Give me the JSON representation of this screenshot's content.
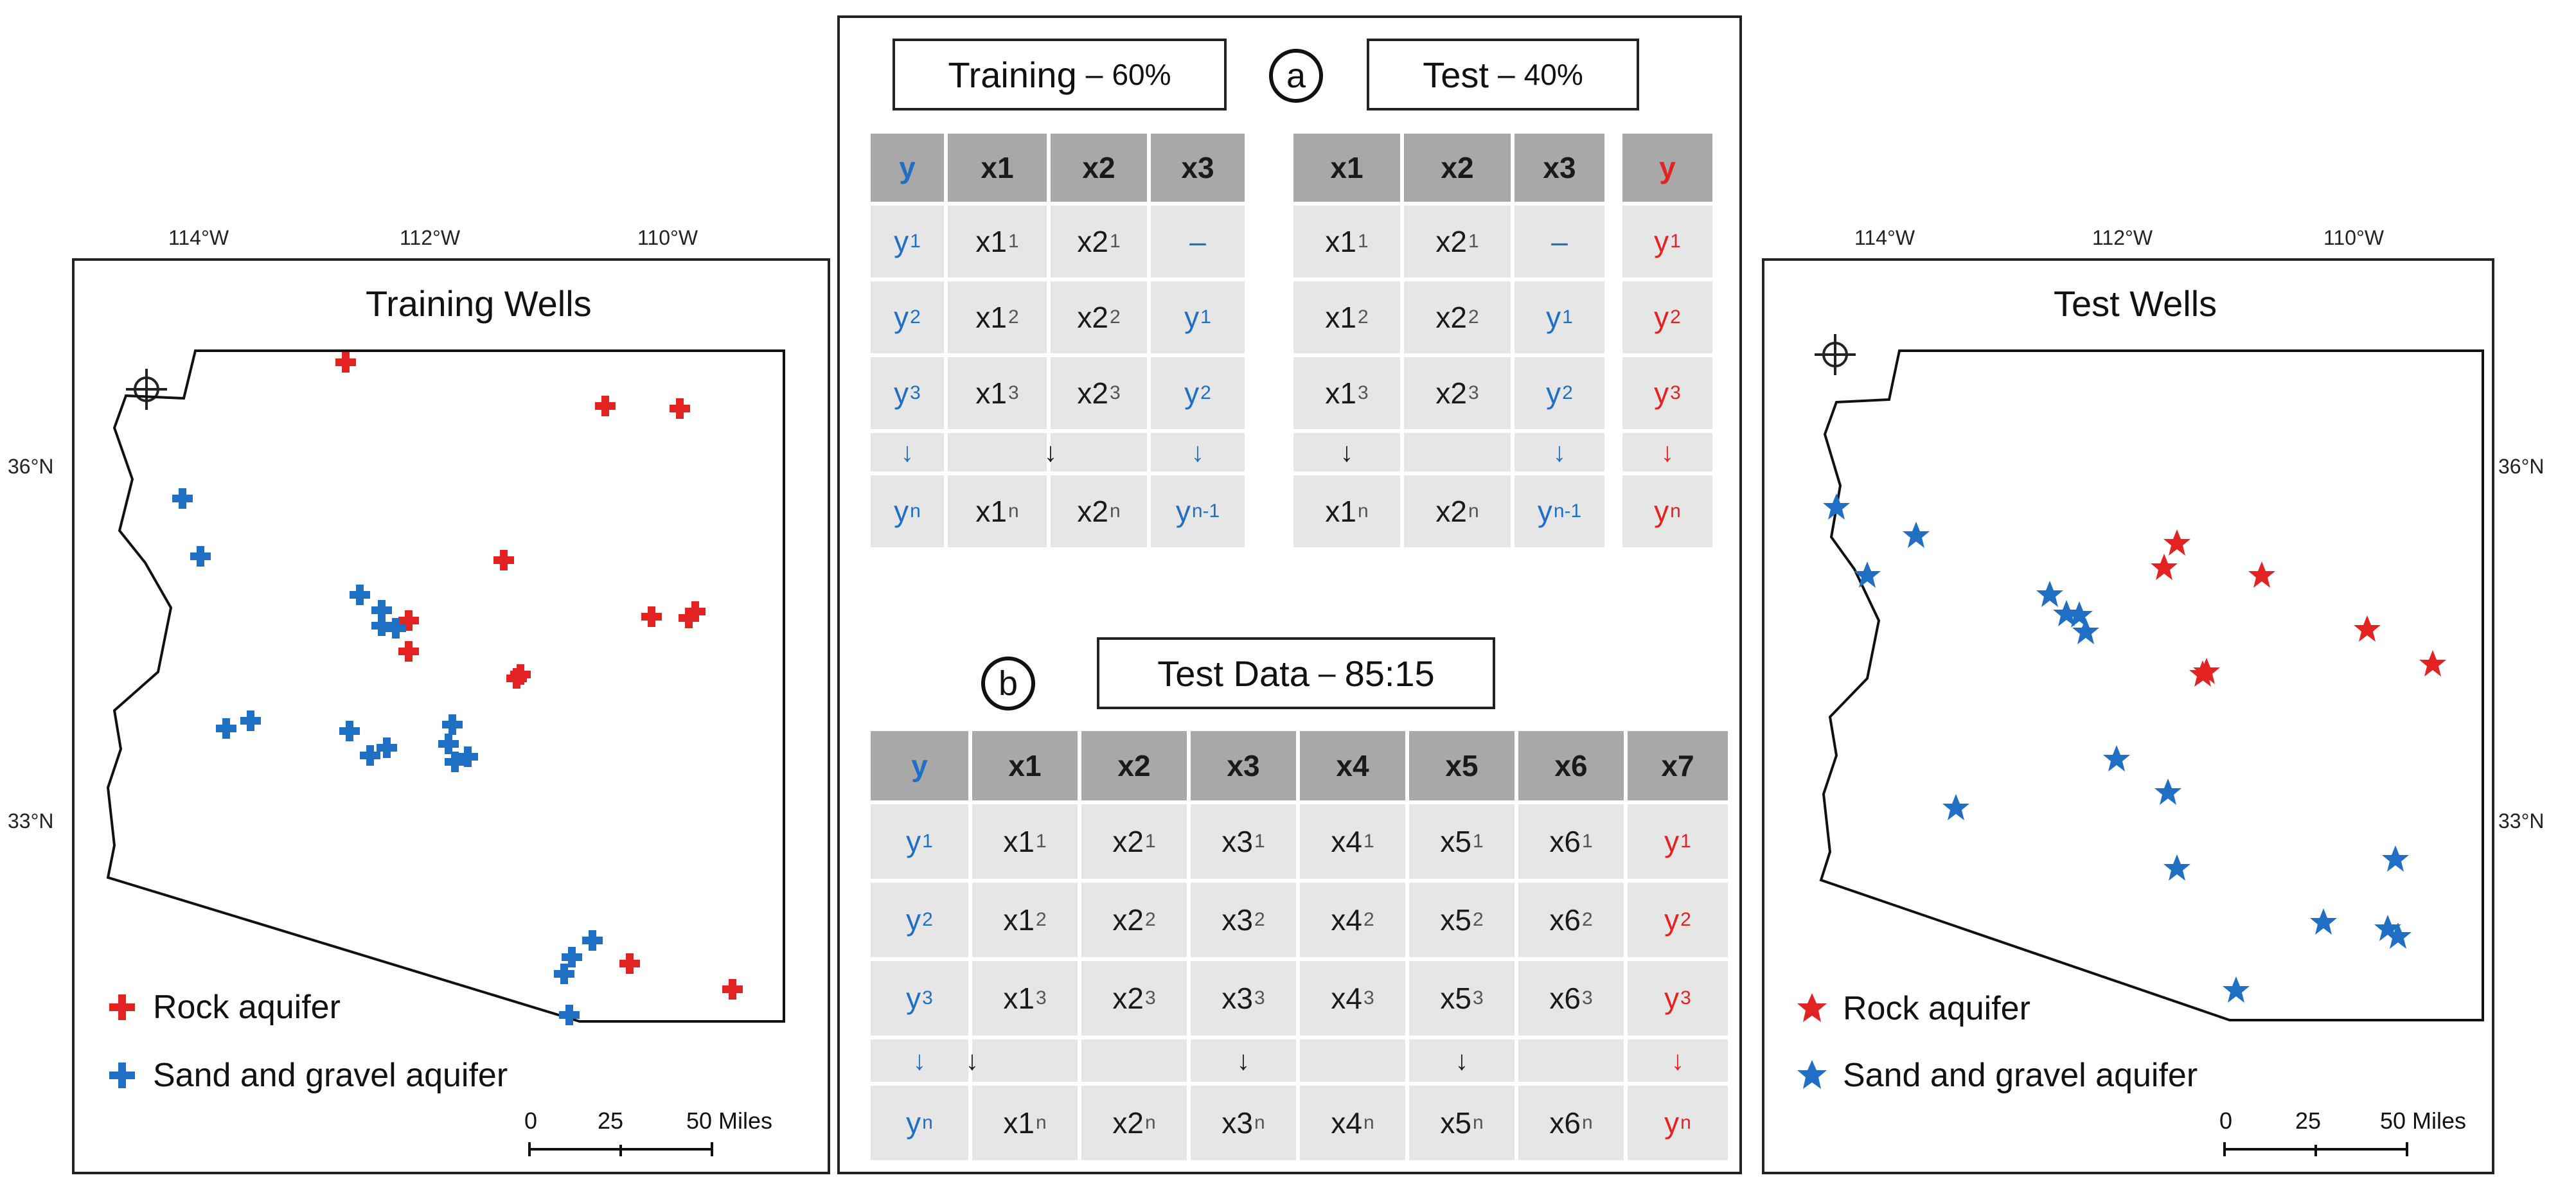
{
  "left_map": {
    "title": "Training Wells",
    "lon_labels": [
      "114°W",
      "112°W",
      "110°W"
    ],
    "lat_labels": [
      "36°N",
      "33°N"
    ],
    "legend": [
      {
        "label": "Rock aquifer",
        "color": "#e32222",
        "marker": "plus"
      },
      {
        "label": "Sand and gravel aquifer",
        "color": "#1f6fc5",
        "marker": "plus"
      }
    ],
    "scale": {
      "ticks": [
        "0",
        "25",
        "50 Miles"
      ]
    }
  },
  "right_map": {
    "title": "Test Wells",
    "lon_labels": [
      "114°W",
      "112°W",
      "110°W"
    ],
    "lat_labels": [
      "36°N",
      "33°N"
    ],
    "legend": [
      {
        "label": "Rock aquifer",
        "color": "#e32222",
        "marker": "star"
      },
      {
        "label": "Sand and gravel aquifer",
        "color": "#1f6fc5",
        "marker": "star"
      }
    ],
    "scale": {
      "ticks": [
        "0",
        "25",
        "50 Miles"
      ]
    }
  },
  "panel_a": {
    "marker": "a",
    "training_box": {
      "title": "Training",
      "dash": "–",
      "pct": "60%"
    },
    "test_box": {
      "title": "Test",
      "dash": "–",
      "pct": "40%"
    },
    "training_table": {
      "headers": [
        "y",
        "x1",
        "x2",
        "x3"
      ],
      "rows": [
        [
          [
            "y",
            "1"
          ],
          [
            "x1",
            "1"
          ],
          [
            "x2",
            "1"
          ],
          [
            "–",
            ""
          ]
        ],
        [
          [
            "y",
            "2"
          ],
          [
            "x1",
            "2"
          ],
          [
            "x2",
            "2"
          ],
          [
            "y",
            "1"
          ]
        ],
        [
          [
            "y",
            "3"
          ],
          [
            "x1",
            "3"
          ],
          [
            "x2",
            "3"
          ],
          [
            "y",
            "2"
          ]
        ],
        [
          [
            "↓",
            ""
          ],
          [
            "",
            ""
          ],
          [
            "",
            ""
          ],
          [
            "↓",
            ""
          ]
        ],
        [
          [
            "y",
            "n"
          ],
          [
            "x1",
            "n"
          ],
          [
            "x2",
            "n"
          ],
          [
            "y",
            "n-1"
          ]
        ]
      ]
    },
    "test_table": {
      "headers": [
        "x1",
        "x2",
        "x3"
      ],
      "rows": [
        [
          [
            "x1",
            "1"
          ],
          [
            "x2",
            "1"
          ],
          [
            "–",
            ""
          ]
        ],
        [
          [
            "x1",
            "2"
          ],
          [
            "x2",
            "2"
          ],
          [
            "y",
            "1"
          ]
        ],
        [
          [
            "x1",
            "3"
          ],
          [
            "x2",
            "3"
          ],
          [
            "y",
            "2"
          ]
        ],
        [
          [
            "",
            ""
          ],
          [
            "",
            ""
          ],
          [
            "↓",
            ""
          ]
        ],
        [
          [
            "x1",
            "n"
          ],
          [
            "x2",
            "n"
          ],
          [
            "y",
            "n-1"
          ]
        ]
      ]
    },
    "target_table": {
      "headers": [
        "y"
      ],
      "rows": [
        [
          [
            "y",
            "1"
          ]
        ],
        [
          [
            "y",
            "2"
          ]
        ],
        [
          [
            "y",
            "3"
          ]
        ],
        [
          [
            "↓",
            ""
          ]
        ],
        [
          [
            "y",
            "n"
          ]
        ]
      ]
    }
  },
  "panel_b": {
    "marker": "b",
    "box": {
      "title": "Test Data",
      "dash": "–",
      "ratio": "85:15"
    },
    "table": {
      "headers": [
        "y",
        "x1",
        "x2",
        "x3",
        "x4",
        "x5",
        "x6",
        "x7"
      ],
      "rows": [
        [
          [
            "y",
            "1"
          ],
          [
            "x1",
            "1"
          ],
          [
            "x2",
            "1"
          ],
          [
            "x3",
            "1"
          ],
          [
            "x4",
            "1"
          ],
          [
            "x5",
            "1"
          ],
          [
            "x6",
            "1"
          ],
          [
            "y",
            "1"
          ]
        ],
        [
          [
            "y",
            "2"
          ],
          [
            "x1",
            "2"
          ],
          [
            "x2",
            "2"
          ],
          [
            "x3",
            "2"
          ],
          [
            "x4",
            "2"
          ],
          [
            "x5",
            "2"
          ],
          [
            "x6",
            "2"
          ],
          [
            "y",
            "2"
          ]
        ],
        [
          [
            "y",
            "3"
          ],
          [
            "x1",
            "3"
          ],
          [
            "x2",
            "3"
          ],
          [
            "x3",
            "3"
          ],
          [
            "x4",
            "3"
          ],
          [
            "x5",
            "3"
          ],
          [
            "x6",
            "3"
          ],
          [
            "y",
            "3"
          ]
        ],
        [
          [
            "↓",
            ""
          ],
          [
            "",
            ""
          ],
          [
            "",
            ""
          ],
          [
            "",
            ""
          ],
          [
            "",
            ""
          ],
          [
            "",
            ""
          ],
          [
            "",
            ""
          ],
          [
            "↓",
            ""
          ]
        ],
        [
          [
            "y",
            "n"
          ],
          [
            "x1",
            "n"
          ],
          [
            "x2",
            "n"
          ],
          [
            "x3",
            "n"
          ],
          [
            "x4",
            "n"
          ],
          [
            "x5",
            "n"
          ],
          [
            "x6",
            "n"
          ],
          [
            "y",
            "n"
          ]
        ]
      ]
    }
  },
  "colors": {
    "blue": "#1f6fc5",
    "red": "#e32222",
    "header": "#a8a8a8",
    "cell": "#e6e6e6"
  }
}
